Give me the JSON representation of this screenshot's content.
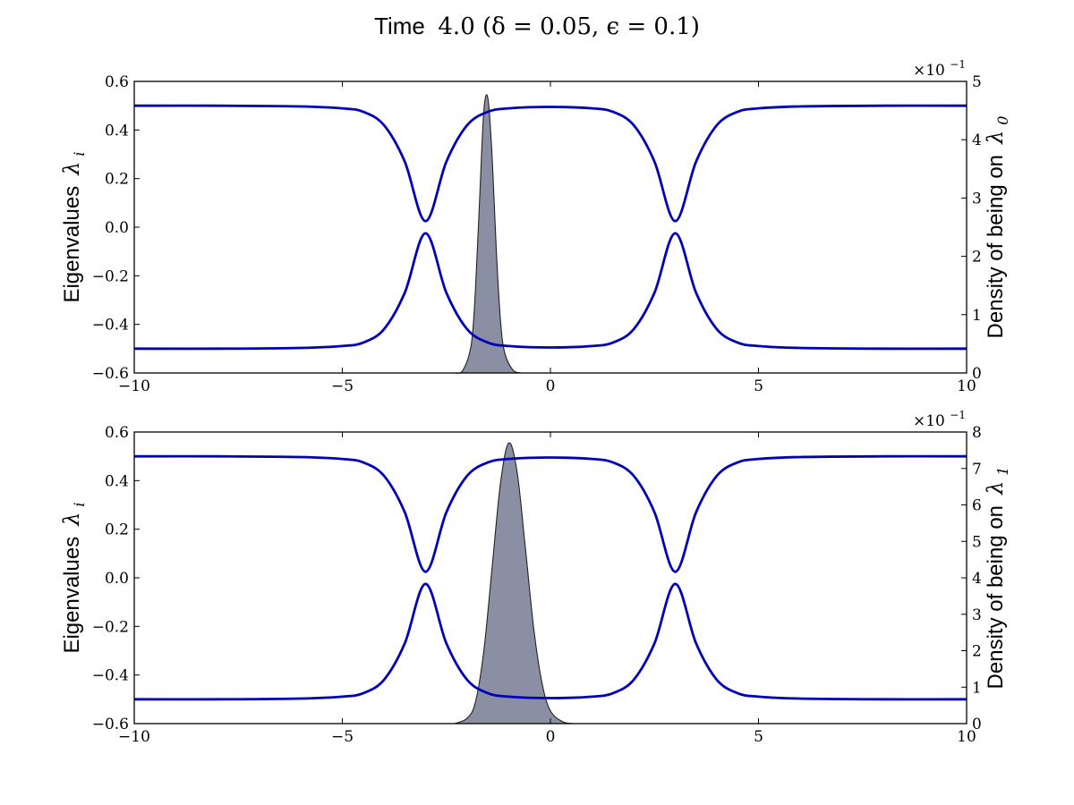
{
  "figure": {
    "title_prefix": "Time",
    "title_math": "4.0 (δ = 0.05,  ϵ = 0.1)"
  },
  "chart_data": [
    {
      "type": "line",
      "xlim": [
        -10,
        10
      ],
      "ylim": [
        -0.6,
        0.6
      ],
      "x_ticks": [
        "−10",
        "−5",
        "0",
        "5",
        "10"
      ],
      "y_ticks": [
        "−0.6",
        "−0.4",
        "−0.2",
        "0.0",
        "0.2",
        "0.4",
        "0.6"
      ],
      "ylabel": "Eigenvalues",
      "ylabel_math": "λ",
      "ylabel_sub": "i",
      "series": [
        {
          "role": "upper eigenvalue",
          "color": "#0000b8",
          "x": [
            -10,
            -8,
            -6,
            -5,
            -4.5,
            -4,
            -3.5,
            -3,
            -2.5,
            -2,
            -1.5,
            -1,
            0,
            1,
            1.5,
            2,
            2.5,
            3,
            3.5,
            4,
            4.5,
            5,
            6,
            8,
            10
          ],
          "y": [
            0.5,
            0.5,
            0.497,
            0.489,
            0.475,
            0.42,
            0.27,
            0.025,
            0.27,
            0.42,
            0.475,
            0.489,
            0.495,
            0.489,
            0.475,
            0.42,
            0.27,
            0.025,
            0.27,
            0.42,
            0.475,
            0.489,
            0.497,
            0.5,
            0.5
          ]
        },
        {
          "role": "lower eigenvalue",
          "color": "#0000b8",
          "x": [
            -10,
            -8,
            -6,
            -5,
            -4.5,
            -4,
            -3.5,
            -3,
            -2.5,
            -2,
            -1.5,
            -1,
            0,
            1,
            1.5,
            2,
            2.5,
            3,
            3.5,
            4,
            4.5,
            5,
            6,
            8,
            10
          ],
          "y": [
            -0.5,
            -0.5,
            -0.497,
            -0.489,
            -0.475,
            -0.42,
            -0.27,
            -0.025,
            -0.27,
            -0.42,
            -0.475,
            -0.489,
            -0.495,
            -0.489,
            -0.475,
            -0.42,
            -0.27,
            -0.025,
            -0.27,
            -0.42,
            -0.475,
            -0.489,
            -0.497,
            -0.5,
            -0.5
          ]
        }
      ],
      "density": {
        "ylim": [
          0,
          5
        ],
        "y_ticks": [
          "0",
          "1",
          "2",
          "3",
          "4",
          "5"
        ],
        "exponent_label": "×10",
        "exponent": "−1",
        "ylabel": "Density of being on",
        "ylabel_math": "λ",
        "ylabel_sub": "0",
        "x": [
          -2.3,
          -2.1,
          -1.9,
          -1.8,
          -1.7,
          -1.6,
          -1.5,
          -1.4,
          -1.3,
          -1.2,
          -1.1,
          -0.9,
          -0.7
        ],
        "y": [
          0.0,
          0.05,
          0.5,
          1.45,
          3.0,
          4.5,
          4.7,
          3.7,
          2.1,
          0.9,
          0.35,
          0.05,
          0.0
        ]
      }
    },
    {
      "type": "line",
      "xlim": [
        -10,
        10
      ],
      "ylim": [
        -0.6,
        0.6
      ],
      "x_ticks": [
        "−10",
        "−5",
        "0",
        "5",
        "10"
      ],
      "y_ticks": [
        "−0.6",
        "−0.4",
        "−0.2",
        "0.0",
        "0.2",
        "0.4",
        "0.6"
      ],
      "ylabel": "Eigenvalues",
      "ylabel_math": "λ",
      "ylabel_sub": "i",
      "series": [
        {
          "role": "upper eigenvalue",
          "color": "#0000b8",
          "x": [
            -10,
            -8,
            -6,
            -5,
            -4.5,
            -4,
            -3.5,
            -3,
            -2.5,
            -2,
            -1.5,
            -1,
            0,
            1,
            1.5,
            2,
            2.5,
            3,
            3.5,
            4,
            4.5,
            5,
            6,
            8,
            10
          ],
          "y": [
            0.5,
            0.5,
            0.497,
            0.489,
            0.475,
            0.42,
            0.27,
            0.025,
            0.27,
            0.42,
            0.475,
            0.489,
            0.495,
            0.489,
            0.475,
            0.42,
            0.27,
            0.025,
            0.27,
            0.42,
            0.475,
            0.489,
            0.497,
            0.5,
            0.5
          ]
        },
        {
          "role": "lower eigenvalue",
          "color": "#0000b8",
          "x": [
            -10,
            -8,
            -6,
            -5,
            -4.5,
            -4,
            -3.5,
            -3,
            -2.5,
            -2,
            -1.5,
            -1,
            0,
            1,
            1.5,
            2,
            2.5,
            3,
            3.5,
            4,
            4.5,
            5,
            6,
            8,
            10
          ],
          "y": [
            -0.5,
            -0.5,
            -0.497,
            -0.489,
            -0.475,
            -0.42,
            -0.27,
            -0.025,
            -0.27,
            -0.42,
            -0.475,
            -0.489,
            -0.495,
            -0.489,
            -0.475,
            -0.42,
            -0.27,
            -0.025,
            -0.27,
            -0.42,
            -0.475,
            -0.489,
            -0.497,
            -0.5,
            -0.5
          ]
        }
      ],
      "density": {
        "ylim": [
          0,
          8
        ],
        "y_ticks": [
          "0",
          "1",
          "2",
          "3",
          "4",
          "5",
          "6",
          "7",
          "8"
        ],
        "exponent_label": "×10",
        "exponent": "−1",
        "ylabel": "Density of being on",
        "ylabel_math": "λ",
        "ylabel_sub": "1",
        "x": [
          -2.3,
          -2.0,
          -1.8,
          -1.6,
          -1.4,
          -1.2,
          -1.0,
          -0.8,
          -0.6,
          -0.4,
          -0.2,
          0.0,
          0.3,
          0.6
        ],
        "y": [
          0.0,
          0.15,
          0.6,
          2.0,
          4.3,
          6.6,
          7.7,
          6.9,
          4.8,
          2.6,
          1.1,
          0.35,
          0.05,
          0.0
        ]
      }
    }
  ]
}
